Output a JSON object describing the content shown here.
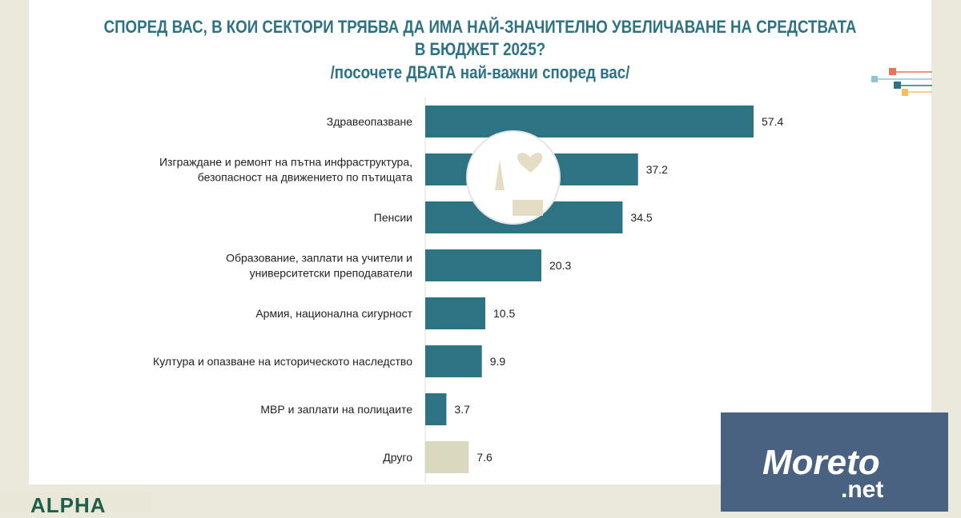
{
  "chart_data": {
    "type": "bar",
    "orientation": "horizontal",
    "title": "СПОРЕД ВАС, В КОИ СЕКТОРИ ТРЯБВА ДА ИМА НАЙ-ЗНАЧИТЕЛНО УВЕЛИЧАВАНЕ НА СРЕДСТВАТА В БЮДЖЕТ 2025?",
    "subtitle": "/посочете ДВАТА най-важни според вас/",
    "categories": [
      "Здравеопазване",
      "Изграждане и ремонт на пътна инфраструктура, безопасност на движението по пътищата",
      "Пенсии",
      "Образование, заплати на учители и университетски преподаватели",
      "Армия, национална сигурност",
      "Култура и опазване на историческото наследство",
      "МВР и заплати на полицаите",
      "Друго"
    ],
    "values": [
      57.4,
      37.2,
      34.5,
      20.3,
      10.5,
      9.9,
      3.7,
      7.6
    ],
    "colors": [
      "#2e7384",
      "#2e7384",
      "#2e7384",
      "#2e7384",
      "#2e7384",
      "#2e7384",
      "#2e7384",
      "#d9d8bf"
    ],
    "xlim": [
      0,
      60
    ],
    "grid": false
  },
  "logos": {
    "moreto": "Moreto.net",
    "alpha": "ALPHA"
  }
}
